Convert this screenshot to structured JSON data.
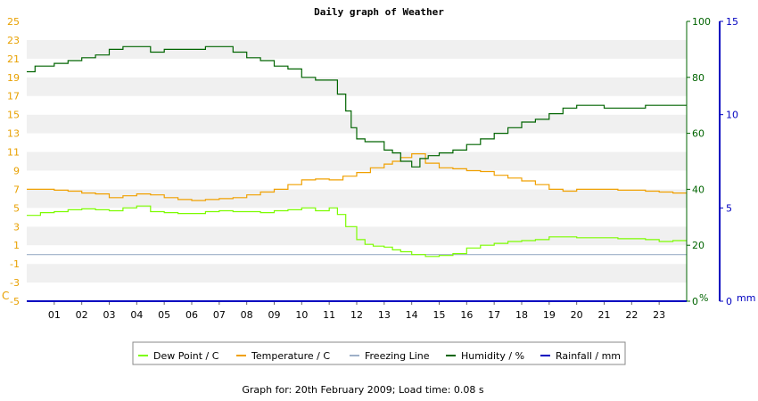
{
  "chart_data": {
    "type": "line",
    "title": "Daily graph of Weather",
    "x_ticks": [
      "01",
      "02",
      "03",
      "04",
      "05",
      "06",
      "07",
      "08",
      "09",
      "10",
      "11",
      "12",
      "13",
      "14",
      "15",
      "16",
      "17",
      "18",
      "19",
      "20",
      "21",
      "22",
      "23"
    ],
    "xlim": [
      0,
      24
    ],
    "left_axis": {
      "unit": "C",
      "ylim": [
        -5,
        25
      ],
      "ticks": [
        -5,
        -3,
        -1,
        1,
        3,
        5,
        7,
        9,
        11,
        13,
        15,
        17,
        19,
        21,
        23,
        25
      ],
      "color": "#e8a000"
    },
    "humidity_axis": {
      "unit": "%",
      "ylim": [
        0,
        100
      ],
      "ticks": [
        0,
        20,
        40,
        60,
        80,
        100
      ],
      "color": "#006400"
    },
    "rainfall_axis": {
      "unit": "mm",
      "ylim": [
        0,
        15
      ],
      "ticks": [
        0,
        5,
        10,
        15
      ],
      "color": "#0000c0"
    },
    "grid": true,
    "legend_position": "bottom",
    "series": [
      {
        "name": "Dew Point / C",
        "axis": "left",
        "color": "#7cfc00",
        "x": [
          0.0,
          0.5,
          1.0,
          1.5,
          2.0,
          2.5,
          3.0,
          3.5,
          4.0,
          4.5,
          5.0,
          5.5,
          6.0,
          6.5,
          7.0,
          7.5,
          8.0,
          8.5,
          9.0,
          9.5,
          10.0,
          10.5,
          11.0,
          11.3,
          11.6,
          12.0,
          12.3,
          12.6,
          13.0,
          13.3,
          13.6,
          14.0,
          14.5,
          15.0,
          15.5,
          16.0,
          16.5,
          17.0,
          17.5,
          18.0,
          18.5,
          19.0,
          19.5,
          20.0,
          20.5,
          21.0,
          21.5,
          22.0,
          22.5,
          23.0,
          23.5,
          24.0
        ],
        "y": [
          4.2,
          4.5,
          4.6,
          4.8,
          4.9,
          4.8,
          4.7,
          5.0,
          5.2,
          4.6,
          4.5,
          4.4,
          4.4,
          4.6,
          4.7,
          4.6,
          4.6,
          4.5,
          4.7,
          4.8,
          5.0,
          4.7,
          5.0,
          4.3,
          3.0,
          1.6,
          1.1,
          0.9,
          0.8,
          0.5,
          0.3,
          0.0,
          -0.2,
          -0.1,
          0.1,
          0.7,
          1.0,
          1.2,
          1.4,
          1.5,
          1.6,
          1.9,
          1.9,
          1.8,
          1.8,
          1.8,
          1.7,
          1.7,
          1.6,
          1.4,
          1.5,
          1.5
        ]
      },
      {
        "name": "Temperature / C",
        "axis": "left",
        "color": "#f0a000",
        "x": [
          0.0,
          0.5,
          1.0,
          1.5,
          2.0,
          2.5,
          3.0,
          3.5,
          4.0,
          4.5,
          5.0,
          5.5,
          6.0,
          6.5,
          7.0,
          7.5,
          8.0,
          8.5,
          9.0,
          9.5,
          10.0,
          10.5,
          11.0,
          11.5,
          12.0,
          12.5,
          13.0,
          13.3,
          13.6,
          14.0,
          14.5,
          15.0,
          15.5,
          16.0,
          16.5,
          17.0,
          17.5,
          18.0,
          18.5,
          19.0,
          19.5,
          20.0,
          20.5,
          21.0,
          21.5,
          22.0,
          22.5,
          23.0,
          23.5,
          24.0
        ],
        "y": [
          7.0,
          7.0,
          6.9,
          6.8,
          6.6,
          6.5,
          6.1,
          6.3,
          6.5,
          6.4,
          6.1,
          5.9,
          5.8,
          5.9,
          6.0,
          6.1,
          6.4,
          6.7,
          7.0,
          7.5,
          8.0,
          8.1,
          8.0,
          8.4,
          8.8,
          9.3,
          9.7,
          10.0,
          10.4,
          10.8,
          9.8,
          9.3,
          9.2,
          9.0,
          8.9,
          8.5,
          8.2,
          7.9,
          7.5,
          7.0,
          6.8,
          7.0,
          7.0,
          7.0,
          6.9,
          6.9,
          6.8,
          6.7,
          6.6,
          6.6
        ]
      },
      {
        "name": "Freezing Line",
        "axis": "left",
        "color": "#9eb0c8",
        "x": [
          0,
          24
        ],
        "y": [
          0,
          0
        ]
      },
      {
        "name": "Humidity / %",
        "axis": "humidity",
        "color": "#006400",
        "x": [
          0.0,
          0.3,
          1.0,
          1.5,
          2.0,
          2.5,
          3.0,
          3.5,
          4.0,
          4.5,
          5.0,
          5.5,
          6.0,
          6.5,
          7.0,
          7.5,
          8.0,
          8.5,
          9.0,
          9.5,
          10.0,
          10.5,
          11.0,
          11.3,
          11.6,
          11.8,
          12.0,
          12.3,
          12.6,
          13.0,
          13.3,
          13.6,
          14.0,
          14.3,
          14.6,
          15.0,
          15.5,
          16.0,
          16.5,
          17.0,
          17.5,
          18.0,
          18.5,
          19.0,
          19.5,
          20.0,
          20.5,
          21.0,
          21.5,
          22.0,
          22.5,
          23.0,
          23.5,
          24.0
        ],
        "y": [
          82,
          84,
          85,
          86,
          87,
          88,
          90,
          91,
          91,
          89,
          90,
          90,
          90,
          91,
          91,
          89,
          87,
          86,
          84,
          83,
          80,
          79,
          79,
          74,
          68,
          62,
          58,
          57,
          57,
          54,
          53,
          50,
          48,
          51,
          52,
          53,
          54,
          56,
          58,
          60,
          62,
          64,
          65,
          67,
          69,
          70,
          70,
          69,
          69,
          69,
          70,
          70,
          70,
          70
        ]
      },
      {
        "name": "Rainfall / mm",
        "axis": "rainfall",
        "color": "#0000c0",
        "x": [
          0,
          24
        ],
        "y": [
          0,
          0
        ]
      }
    ]
  },
  "footer": {
    "text": "Graph for: 20th February 2009; Load time: 0.08 s"
  }
}
